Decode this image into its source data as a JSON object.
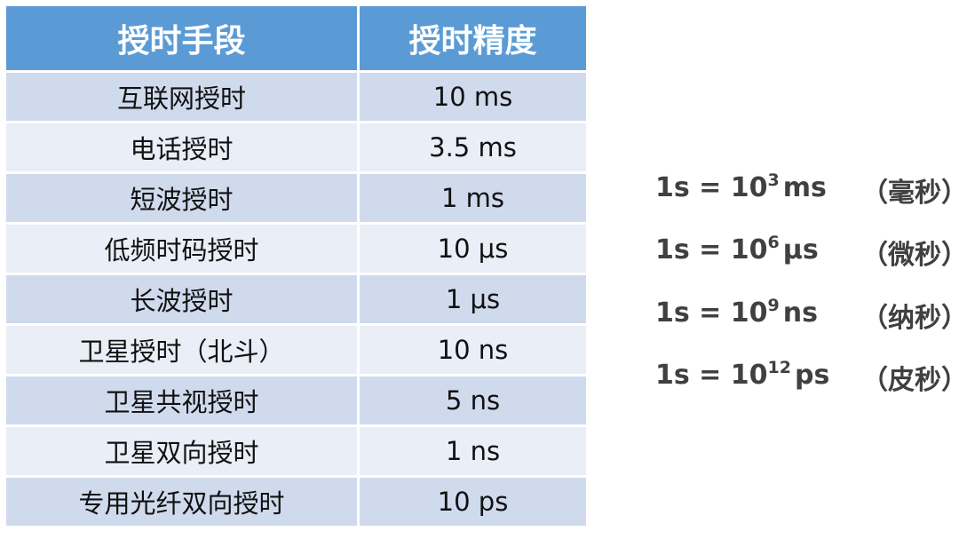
{
  "table": {
    "headers": [
      "授时手段",
      "授时精度"
    ],
    "rows": [
      [
        "互联网授时",
        "10 ms"
      ],
      [
        "电话授时",
        "3.5 ms"
      ],
      [
        "短波授时",
        "1 ms"
      ],
      [
        "低频时码授时",
        "10 μs"
      ],
      [
        "长波授时",
        "1 μs"
      ],
      [
        "卫星授时（北斗）",
        "10 ns"
      ],
      [
        "卫星共视授时",
        "5 ns"
      ],
      [
        "卫星双向授时",
        "1 ns"
      ],
      [
        "专用光纤双向授时",
        "10 ps"
      ]
    ]
  },
  "conversions": [
    {
      "lhs": "1s = 10",
      "exp": "3",
      "unit": "ms",
      "name": "（毫秒）"
    },
    {
      "lhs": "1s = 10",
      "exp": "6",
      "unit": "μs",
      "name": "（微秒）"
    },
    {
      "lhs": "1s = 10",
      "exp": "9",
      "unit": "ns",
      "name": "（纳秒）"
    },
    {
      "lhs": "1s = 10",
      "exp": "12",
      "unit": "ps",
      "name": "（皮秒）"
    }
  ],
  "colors": {
    "header": "#5b9bd5",
    "row_odd": "#cfdaed",
    "row_even": "#e9eef7",
    "text_right": "#404040"
  }
}
